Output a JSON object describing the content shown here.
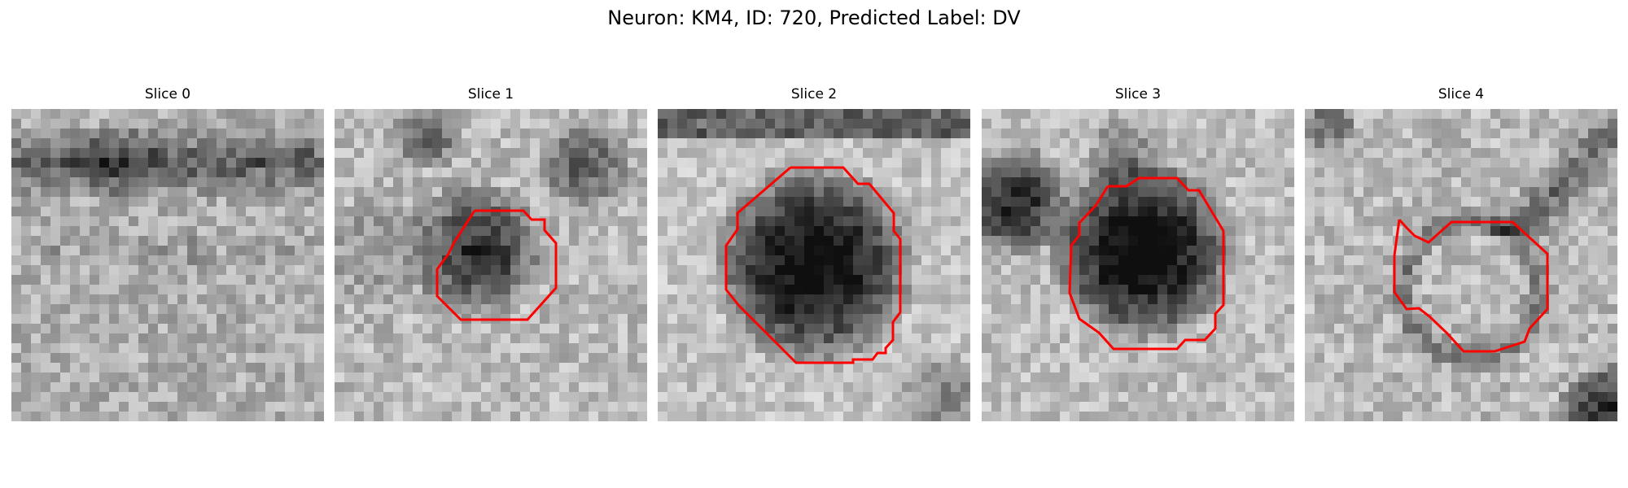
{
  "figure": {
    "title": "Neuron: KM4, ID: 720, Predicted Label: DV"
  },
  "contour_color": "#ff0000",
  "panels": [
    {
      "title": "Slice 0",
      "has_contour": false
    },
    {
      "title": "Slice 1",
      "has_contour": true
    },
    {
      "title": "Slice 2",
      "has_contour": true
    },
    {
      "title": "Slice 3",
      "has_contour": true
    },
    {
      "title": "Slice 4",
      "has_contour": true
    }
  ]
}
